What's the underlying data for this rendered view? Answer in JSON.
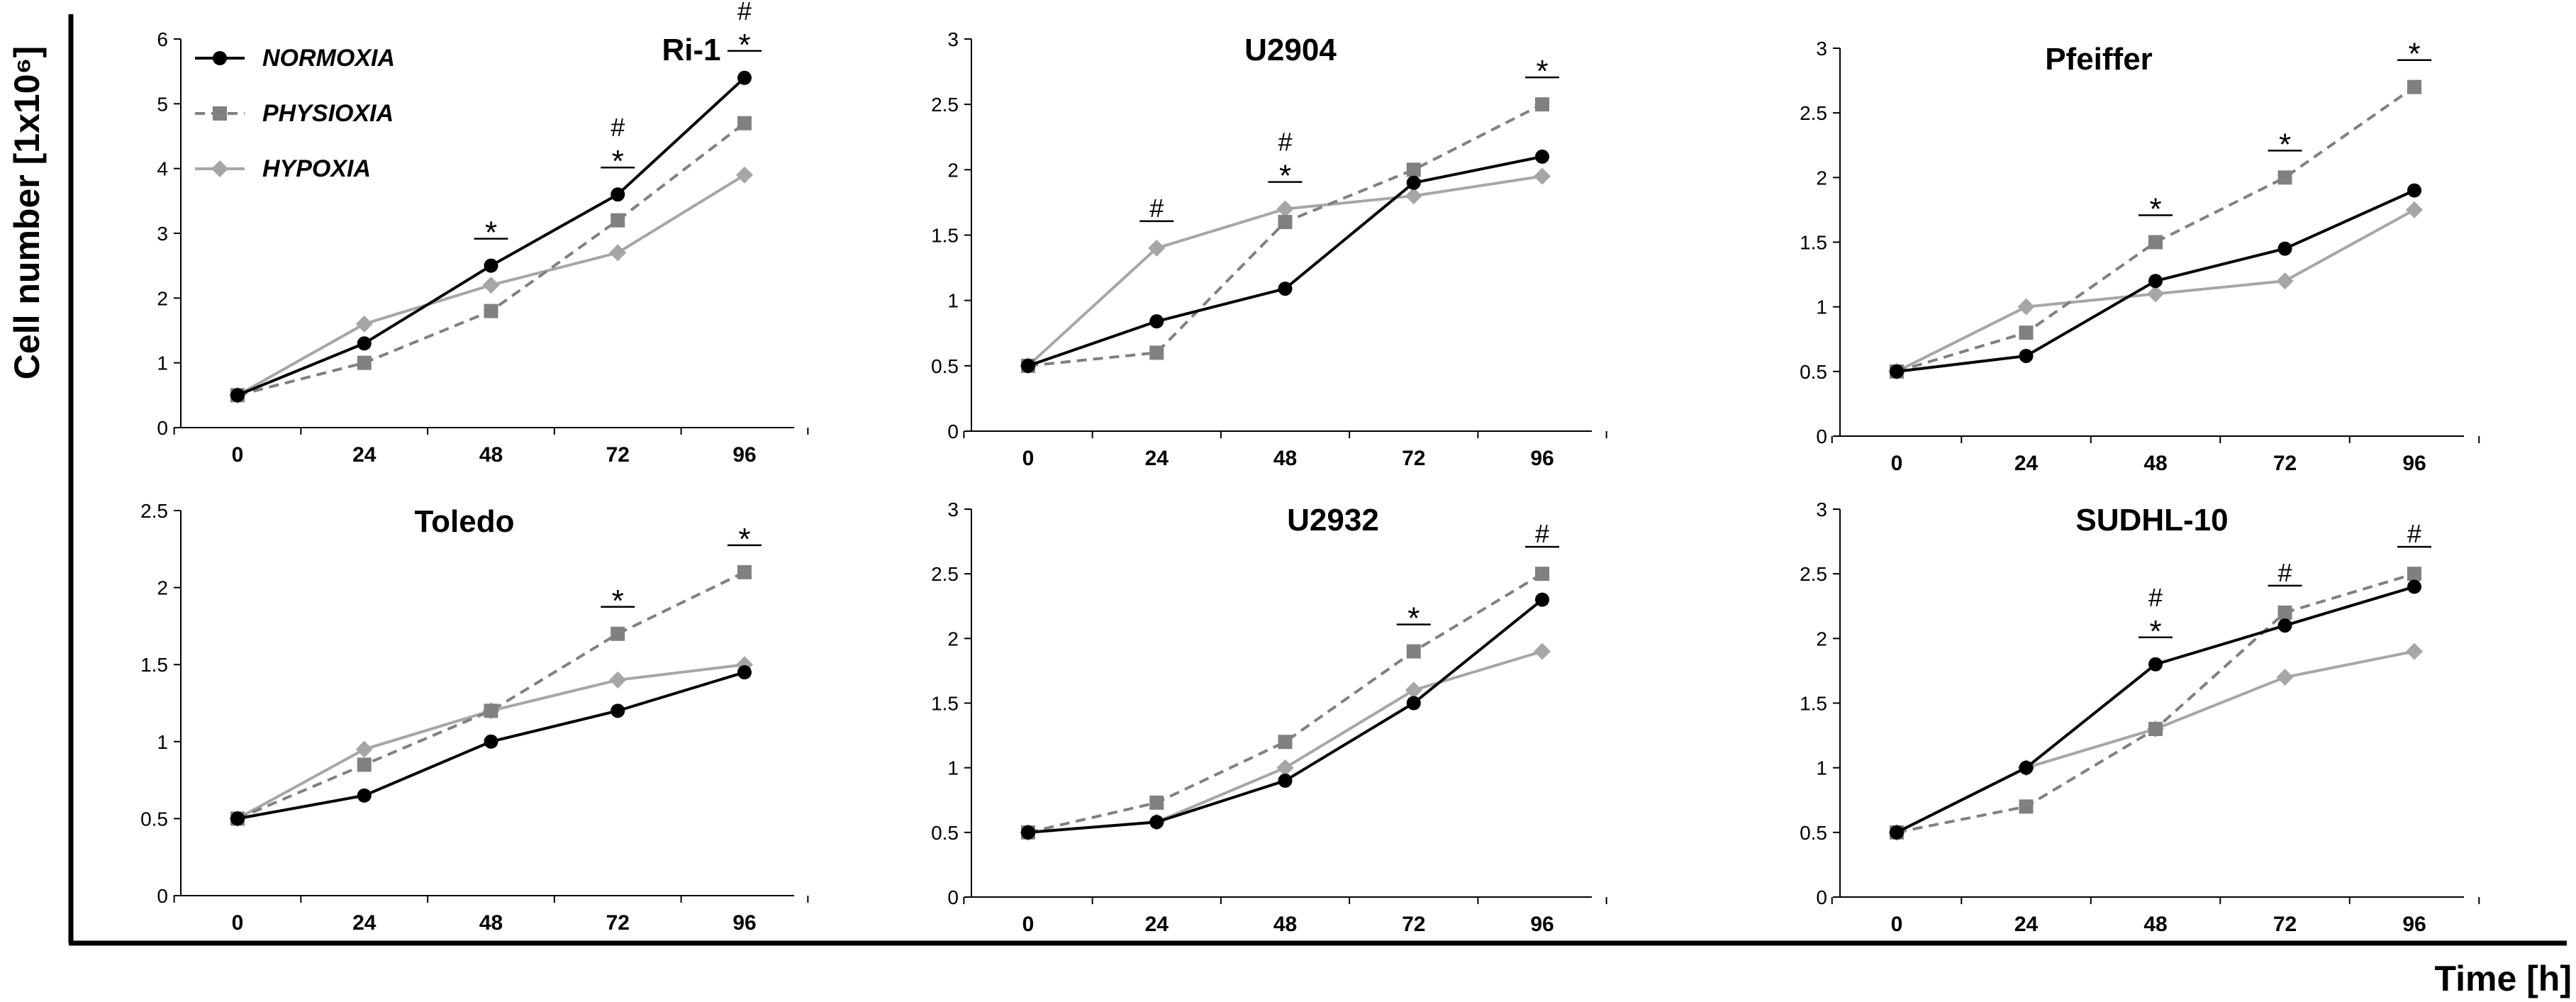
{
  "figure": {
    "y_axis_label": "Cell number [1x10⁶]",
    "x_axis_label": "Time [h]",
    "legend": [
      {
        "name": "NORMOXIA",
        "color": "#000000",
        "marker": "circle",
        "dash": false
      },
      {
        "name": "PHYSIOXIA",
        "color": "#808080",
        "marker": "square",
        "dash": true
      },
      {
        "name": "HYPOXIA",
        "color": "#a6a6a6",
        "marker": "diamond",
        "dash": false
      }
    ]
  },
  "chart_data": [
    {
      "type": "line",
      "title": "Ri-1",
      "x": [
        0,
        24,
        48,
        72,
        96
      ],
      "ylim": [
        0,
        6
      ],
      "yticks": [
        "0",
        "1",
        "2",
        "3",
        "4",
        "5",
        "6"
      ],
      "series": [
        {
          "name": "NORMOXIA",
          "values": [
            0.5,
            1.3,
            2.5,
            3.6,
            5.4
          ]
        },
        {
          "name": "PHYSIOXIA",
          "values": [
            0.5,
            1.0,
            1.8,
            3.2,
            4.7
          ]
        },
        {
          "name": "HYPOXIA",
          "values": [
            0.5,
            1.6,
            2.2,
            2.7,
            3.9
          ]
        }
      ],
      "annotations": [
        {
          "x": 48,
          "symbols": [
            "*"
          ]
        },
        {
          "x": 72,
          "symbols": [
            "#",
            "*"
          ]
        },
        {
          "x": 96,
          "symbols": [
            "#",
            "*"
          ]
        }
      ]
    },
    {
      "type": "line",
      "title": "U2904",
      "x": [
        0,
        24,
        48,
        72,
        96
      ],
      "ylim": [
        0,
        3
      ],
      "yticks": [
        "0",
        "0.5",
        "1",
        "1.5",
        "2",
        "2.5",
        "3"
      ],
      "series": [
        {
          "name": "NORMOXIA",
          "values": [
            0.5,
            0.84,
            1.09,
            1.9,
            2.1
          ]
        },
        {
          "name": "PHYSIOXIA",
          "values": [
            0.5,
            0.6,
            1.6,
            2.0,
            2.5
          ]
        },
        {
          "name": "HYPOXIA",
          "values": [
            0.5,
            1.4,
            1.7,
            1.8,
            1.95
          ]
        }
      ],
      "annotations": [
        {
          "x": 24,
          "symbols": [
            "#"
          ]
        },
        {
          "x": 48,
          "symbols": [
            "#",
            "*"
          ]
        },
        {
          "x": 96,
          "symbols": [
            "*"
          ]
        }
      ]
    },
    {
      "type": "line",
      "title": "Pfeiffer",
      "x": [
        0,
        24,
        48,
        72,
        96
      ],
      "ylim": [
        0,
        3
      ],
      "yticks": [
        "0",
        "0.5",
        "1",
        "1.5",
        "2",
        "2.5",
        "3"
      ],
      "series": [
        {
          "name": "NORMOXIA",
          "values": [
            0.5,
            0.62,
            1.2,
            1.45,
            1.9
          ]
        },
        {
          "name": "PHYSIOXIA",
          "values": [
            0.5,
            0.8,
            1.5,
            2.0,
            2.7
          ]
        },
        {
          "name": "HYPOXIA",
          "values": [
            0.5,
            1.0,
            1.1,
            1.2,
            1.75
          ]
        }
      ],
      "annotations": [
        {
          "x": 48,
          "symbols": [
            "*"
          ]
        },
        {
          "x": 72,
          "symbols": [
            "*"
          ]
        },
        {
          "x": 96,
          "symbols": [
            "*"
          ]
        }
      ]
    },
    {
      "type": "line",
      "title": "Toledo",
      "x": [
        0,
        24,
        48,
        72,
        96
      ],
      "ylim": [
        0,
        2.5
      ],
      "yticks": [
        "0",
        "0.5",
        "1",
        "1.5",
        "2",
        "2.5"
      ],
      "series": [
        {
          "name": "NORMOXIA",
          "values": [
            0.5,
            0.65,
            1.0,
            1.2,
            1.45
          ]
        },
        {
          "name": "PHYSIOXIA",
          "values": [
            0.5,
            0.85,
            1.2,
            1.7,
            2.1
          ]
        },
        {
          "name": "HYPOXIA",
          "values": [
            0.5,
            0.95,
            1.2,
            1.4,
            1.5
          ]
        }
      ],
      "annotations": [
        {
          "x": 72,
          "symbols": [
            "*"
          ]
        },
        {
          "x": 96,
          "symbols": [
            "*"
          ]
        }
      ]
    },
    {
      "type": "line",
      "title": "U2932",
      "x": [
        0,
        24,
        48,
        72,
        96
      ],
      "ylim": [
        0,
        3
      ],
      "yticks": [
        "0",
        "0.5",
        "1",
        "1.5",
        "2",
        "2.5",
        "3"
      ],
      "series": [
        {
          "name": "NORMOXIA",
          "values": [
            0.5,
            0.58,
            0.9,
            1.5,
            2.3
          ]
        },
        {
          "name": "PHYSIOXIA",
          "values": [
            0.5,
            0.73,
            1.2,
            1.9,
            2.5
          ]
        },
        {
          "name": "HYPOXIA",
          "values": [
            0.5,
            0.58,
            1.0,
            1.6,
            1.9
          ]
        }
      ],
      "annotations": [
        {
          "x": 72,
          "symbols": [
            "*"
          ]
        },
        {
          "x": 96,
          "symbols": [
            "#"
          ]
        }
      ]
    },
    {
      "type": "line",
      "title": "SUDHL-10",
      "x": [
        0,
        24,
        48,
        72,
        96
      ],
      "ylim": [
        0,
        3
      ],
      "yticks": [
        "0",
        "0.5",
        "1",
        "1.5",
        "2",
        "2.5",
        "3"
      ],
      "series": [
        {
          "name": "NORMOXIA",
          "values": [
            0.5,
            1.0,
            1.8,
            2.1,
            2.4
          ]
        },
        {
          "name": "PHYSIOXIA",
          "values": [
            0.5,
            0.7,
            1.3,
            2.2,
            2.5
          ]
        },
        {
          "name": "HYPOXIA",
          "values": [
            0.5,
            1.0,
            1.3,
            1.7,
            1.9
          ]
        }
      ],
      "annotations": [
        {
          "x": 48,
          "symbols": [
            "#",
            "*"
          ]
        },
        {
          "x": 72,
          "symbols": [
            "#"
          ]
        },
        {
          "x": 96,
          "symbols": [
            "#"
          ]
        }
      ]
    }
  ]
}
